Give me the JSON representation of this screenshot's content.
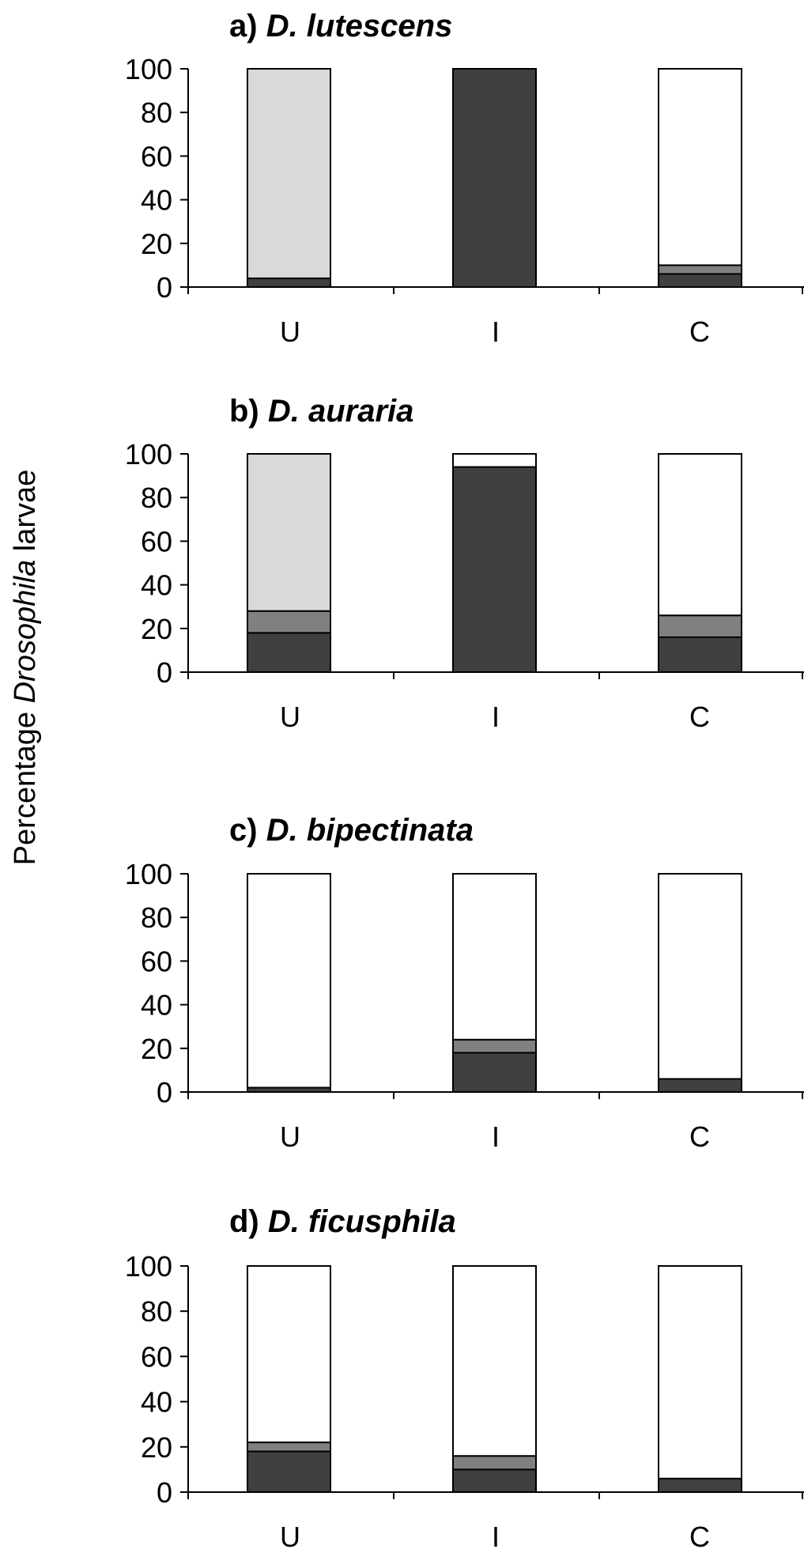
{
  "chart_data": {
    "type": "bar",
    "stacked": true,
    "ylabel": {
      "before": "Percentage ",
      "italic": "Drosophila",
      "after": " larvae"
    },
    "categories": [
      "U",
      "I",
      "C"
    ],
    "ylim": [
      0,
      100
    ],
    "yticks": [
      "0",
      "20",
      "40",
      "60",
      "80",
      "100"
    ],
    "segment_colors": {
      "dark": "#404040",
      "medium": "#808080",
      "light": "#d9d9d9",
      "white": "#ffffff"
    },
    "panels": [
      {
        "prefix": "a)",
        "species": "D. lutescens",
        "series": [
          {
            "color": "dark",
            "values": [
              4,
              100,
              6
            ]
          },
          {
            "color": "medium",
            "values": [
              0,
              0,
              4
            ]
          },
          {
            "color": "light",
            "values": [
              96,
              0,
              0
            ]
          },
          {
            "color": "white",
            "values": [
              0,
              0,
              90
            ]
          }
        ]
      },
      {
        "prefix": "b)",
        "species": "D. auraria",
        "series": [
          {
            "color": "dark",
            "values": [
              18,
              94,
              16
            ]
          },
          {
            "color": "medium",
            "values": [
              10,
              0,
              10
            ]
          },
          {
            "color": "light",
            "values": [
              72,
              0,
              0
            ]
          },
          {
            "color": "white",
            "values": [
              0,
              6,
              74
            ]
          }
        ]
      },
      {
        "prefix": "c)",
        "species": "D. bipectinata",
        "series": [
          {
            "color": "dark",
            "values": [
              2,
              18,
              6
            ]
          },
          {
            "color": "medium",
            "values": [
              0,
              6,
              0
            ]
          },
          {
            "color": "light",
            "values": [
              0,
              0,
              0
            ]
          },
          {
            "color": "white",
            "values": [
              98,
              76,
              94
            ]
          }
        ]
      },
      {
        "prefix": "d)",
        "species": "D. ficusphila",
        "series": [
          {
            "color": "dark",
            "values": [
              18,
              10,
              6
            ]
          },
          {
            "color": "medium",
            "values": [
              4,
              6,
              0
            ]
          },
          {
            "color": "light",
            "values": [
              0,
              0,
              0
            ]
          },
          {
            "color": "white",
            "values": [
              78,
              84,
              94
            ]
          }
        ]
      }
    ]
  }
}
